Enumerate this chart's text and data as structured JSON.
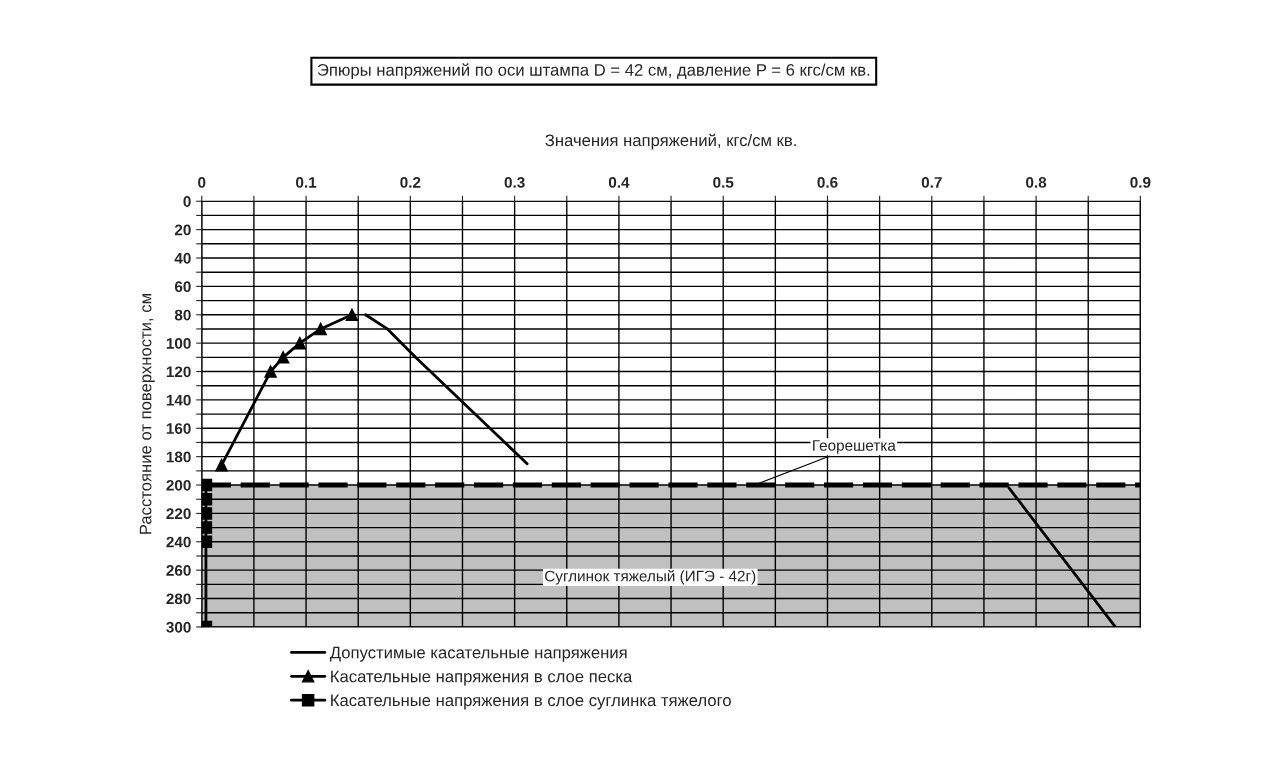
{
  "chart_data": {
    "type": "line",
    "title": "Эпюры напряжений по оси штампа D = 42 см, давление P = 6 кгс/см кв.",
    "xlabel": "Значения напряжений, кгс/см кв.",
    "ylabel": "Расстояние от поверхности, см",
    "series": [
      {
        "name": "Допустимые касательные напряжения",
        "color": "#000000",
        "marker": "none",
        "x": [
          0.157,
          0.178,
          0.205,
          0.312,
          null,
          0.774,
          0.876
        ],
        "values": [
          80,
          90,
          110,
          185,
          null,
          202,
          300
        ]
      },
      {
        "name": "Касательные напряжения в слое песка",
        "color": "#000000",
        "marker": "triangle",
        "x": [
          0.019,
          0.066,
          0.078,
          0.094,
          0.114,
          0.144
        ],
        "values": [
          186,
          120,
          110,
          100,
          90,
          80
        ]
      },
      {
        "name": "Касательные напряжения в слое суглинка тяжелого",
        "color": "#000000",
        "marker": "square",
        "x": [
          0.004,
          0.004,
          0.004,
          0.004,
          0.004,
          0.004
        ],
        "values": [
          200,
          210,
          220,
          230,
          240,
          300
        ]
      }
    ],
    "xlim": [
      0,
      0.9
    ],
    "xticks": [
      0,
      {
        "value": 0.05,
        "label": null
      },
      0.1,
      {
        "value": 0.15,
        "label": null
      },
      0.2,
      {
        "value": 0.25,
        "label": null
      },
      0.3,
      {
        "value": 0.35,
        "label": null
      },
      0.4,
      {
        "value": 0.45,
        "label": null
      },
      0.5,
      {
        "value": 0.55,
        "label": null
      },
      0.6,
      {
        "value": 0.65,
        "label": null
      },
      0.7,
      {
        "value": 0.75,
        "label": null
      },
      0.8,
      {
        "value": 0.85,
        "label": null
      },
      0.9
    ],
    "ylim": [
      300,
      0
    ],
    "yticks": [
      0,
      {
        "value": 10,
        "label": null
      },
      20,
      {
        "value": 30,
        "label": null
      },
      40,
      {
        "value": 50,
        "label": null
      },
      60,
      {
        "value": 70,
        "label": null
      },
      80,
      {
        "value": 90,
        "label": null
      },
      100,
      {
        "value": 110,
        "label": null
      },
      120,
      {
        "value": 130,
        "label": null
      },
      140,
      {
        "value": 150,
        "label": null
      },
      160,
      {
        "value": 170,
        "label": null
      },
      180,
      {
        "value": 190,
        "label": null
      },
      200,
      {
        "value": 210,
        "label": null
      },
      220,
      {
        "value": 230,
        "label": null
      },
      240,
      {
        "value": 250,
        "label": null
      },
      260,
      {
        "value": 270,
        "label": null
      },
      280,
      {
        "value": 290,
        "label": null
      },
      300
    ],
    "ref_lines": [
      {
        "axis": "y",
        "value": 200,
        "label": "Георешетка",
        "line_style": "dashed",
        "color": "#000000"
      }
    ],
    "bands": [
      {
        "axis": "y",
        "from": 200,
        "to": 300,
        "label": "Суглинок тяжелый (ИГЭ - 42г)",
        "color": "#c0c0c0"
      }
    ],
    "grid": true,
    "legend": "bottom"
  }
}
